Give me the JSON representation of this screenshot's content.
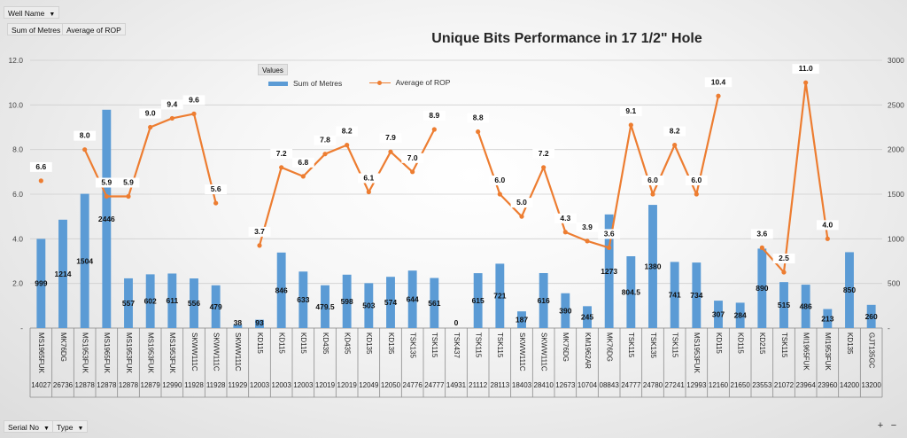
{
  "pivot": {
    "well_name": "Well Name",
    "sum_metres": "Sum of Metres",
    "avg_rop": "Average of ROP",
    "serial_no": "Serial No",
    "type": "Type",
    "values": "Values",
    "zoom_in": "+",
    "zoom_out": "−"
  },
  "chart_data": {
    "type": "bar+line",
    "title": "Unique Bits Performance in 17 1/2\" Hole",
    "left_axis": {
      "min": 0,
      "max": 12,
      "ticks": [
        "-",
        "2.0",
        "4.0",
        "6.0",
        "8.0",
        "10.0",
        "12.0"
      ]
    },
    "right_axis": {
      "min": 0,
      "max": 3000,
      "ticks": [
        "-",
        "500",
        "1000",
        "1500",
        "2000",
        "2500",
        "3000"
      ]
    },
    "types": [
      "MS1965FUK",
      "MK76DG",
      "MS1953FUK",
      "MS1965FUK",
      "MS1953FUK",
      "MS1953FUK",
      "MS1953FUK",
      "SKWW111C",
      "SKWW111C",
      "SKWW111C",
      "KD115",
      "KD115",
      "KD115",
      "KD435",
      "KD435",
      "KD135",
      "KD135",
      "TSK135",
      "TSK115",
      "TSK437",
      "TSK115",
      "TSK115",
      "SKWW111C",
      "SKWW111C",
      "MK76DG",
      "KM1962AR",
      "MK76DG",
      "TSK115",
      "TSK135",
      "TSK115",
      "MS1953FUK",
      "KD115",
      "KD115",
      "KD215",
      "TSK115",
      "MI1965FUK",
      "MI1953FUK",
      "KD135",
      "GJT135GC"
    ],
    "serials": [
      "14027",
      "26736",
      "12878",
      "12878",
      "12878",
      "12879",
      "12990",
      "11928",
      "11928",
      "11929",
      "12003",
      "12003",
      "12003",
      "12019",
      "12019",
      "12049",
      "12050",
      "24776",
      "24777",
      "14931",
      "21112",
      "28113",
      "18403",
      "28410",
      "12673",
      "10704",
      "08843",
      "24777",
      "24780",
      "27241",
      "12993",
      "12160",
      "21650",
      "23553",
      "21072",
      "23964",
      "23960",
      "14200",
      "13200"
    ],
    "serial_display": [
      "14027",
      "26736",
      "12878",
      "12878",
      "12878",
      "12879",
      "12990",
      "11928",
      "11928",
      "11929",
      "12003",
      "12003",
      "12003",
      "12019",
      "12019",
      "12049",
      "12050",
      "24776",
      "24777",
      "14931",
      "21112",
      "28113",
      "18403",
      "28410",
      "12673",
      "10704",
      "08843",
      "24777",
      "24780",
      "27241",
      "12993",
      "12160",
      "21650",
      "23553",
      "21072",
      "23964",
      "23960",
      "14200",
      "13200"
    ],
    "series": [
      {
        "name": "Sum of Metres",
        "axis": "right",
        "color": "#5b9bd5",
        "values": [
          999,
          1214,
          1504,
          2446,
          557,
          602,
          611,
          556,
          479,
          38,
          93,
          846,
          633,
          479.5,
          598,
          503,
          574,
          644,
          561,
          0,
          615,
          721,
          187,
          616,
          390,
          245,
          1273,
          804.5,
          1380,
          741,
          734,
          307,
          284,
          890,
          515,
          486,
          213,
          850,
          260
        ]
      },
      {
        "name": "Average of ROP",
        "axis": "left",
        "color": "#ed7d31",
        "values": [
          6.6,
          null,
          8.0,
          5.9,
          5.9,
          9.0,
          9.4,
          9.6,
          5.6,
          null,
          3.7,
          7.2,
          6.8,
          7.8,
          8.2,
          6.1,
          7.9,
          7.0,
          8.9,
          null,
          8.8,
          6.0,
          5.0,
          7.2,
          4.3,
          3.9,
          3.6,
          9.1,
          6.0,
          8.2,
          6.0,
          10.4,
          null,
          3.6,
          2.5,
          11.0,
          4.0,
          null,
          null
        ]
      }
    ],
    "bar_labels": [
      "999",
      "1214",
      "1504",
      "2446",
      "557",
      "602",
      "611",
      "556",
      "479",
      "38",
      "93",
      "846",
      "633",
      "479.5",
      "598",
      "503",
      "574",
      "644",
      "561",
      "0",
      "615",
      "721",
      "187",
      "616",
      "390",
      "245",
      "1273",
      "804.5",
      "1380",
      "741",
      "734",
      "307",
      "284",
      "890",
      "515",
      "486",
      "213",
      "850",
      "260"
    ],
    "rop_labels": [
      "6.6",
      "",
      "8.0",
      "5.9",
      "5.9",
      "9.0",
      "9.4",
      "9.6",
      "5.6",
      "",
      "3.7",
      "7.2",
      "6.8",
      "7.8",
      "8.2",
      "6.1",
      "7.9",
      "7.0",
      "8.9",
      "",
      "8.8",
      "6.0",
      "5.0",
      "7.2",
      "4.3",
      "3.9",
      "3.6",
      "9.1",
      "6.0",
      "8.2",
      "6.0",
      "10.4",
      "",
      "3.6",
      "2.5",
      "11.0",
      "4.0",
      "",
      ""
    ],
    "legend_position": "top-center",
    "grid": true
  }
}
